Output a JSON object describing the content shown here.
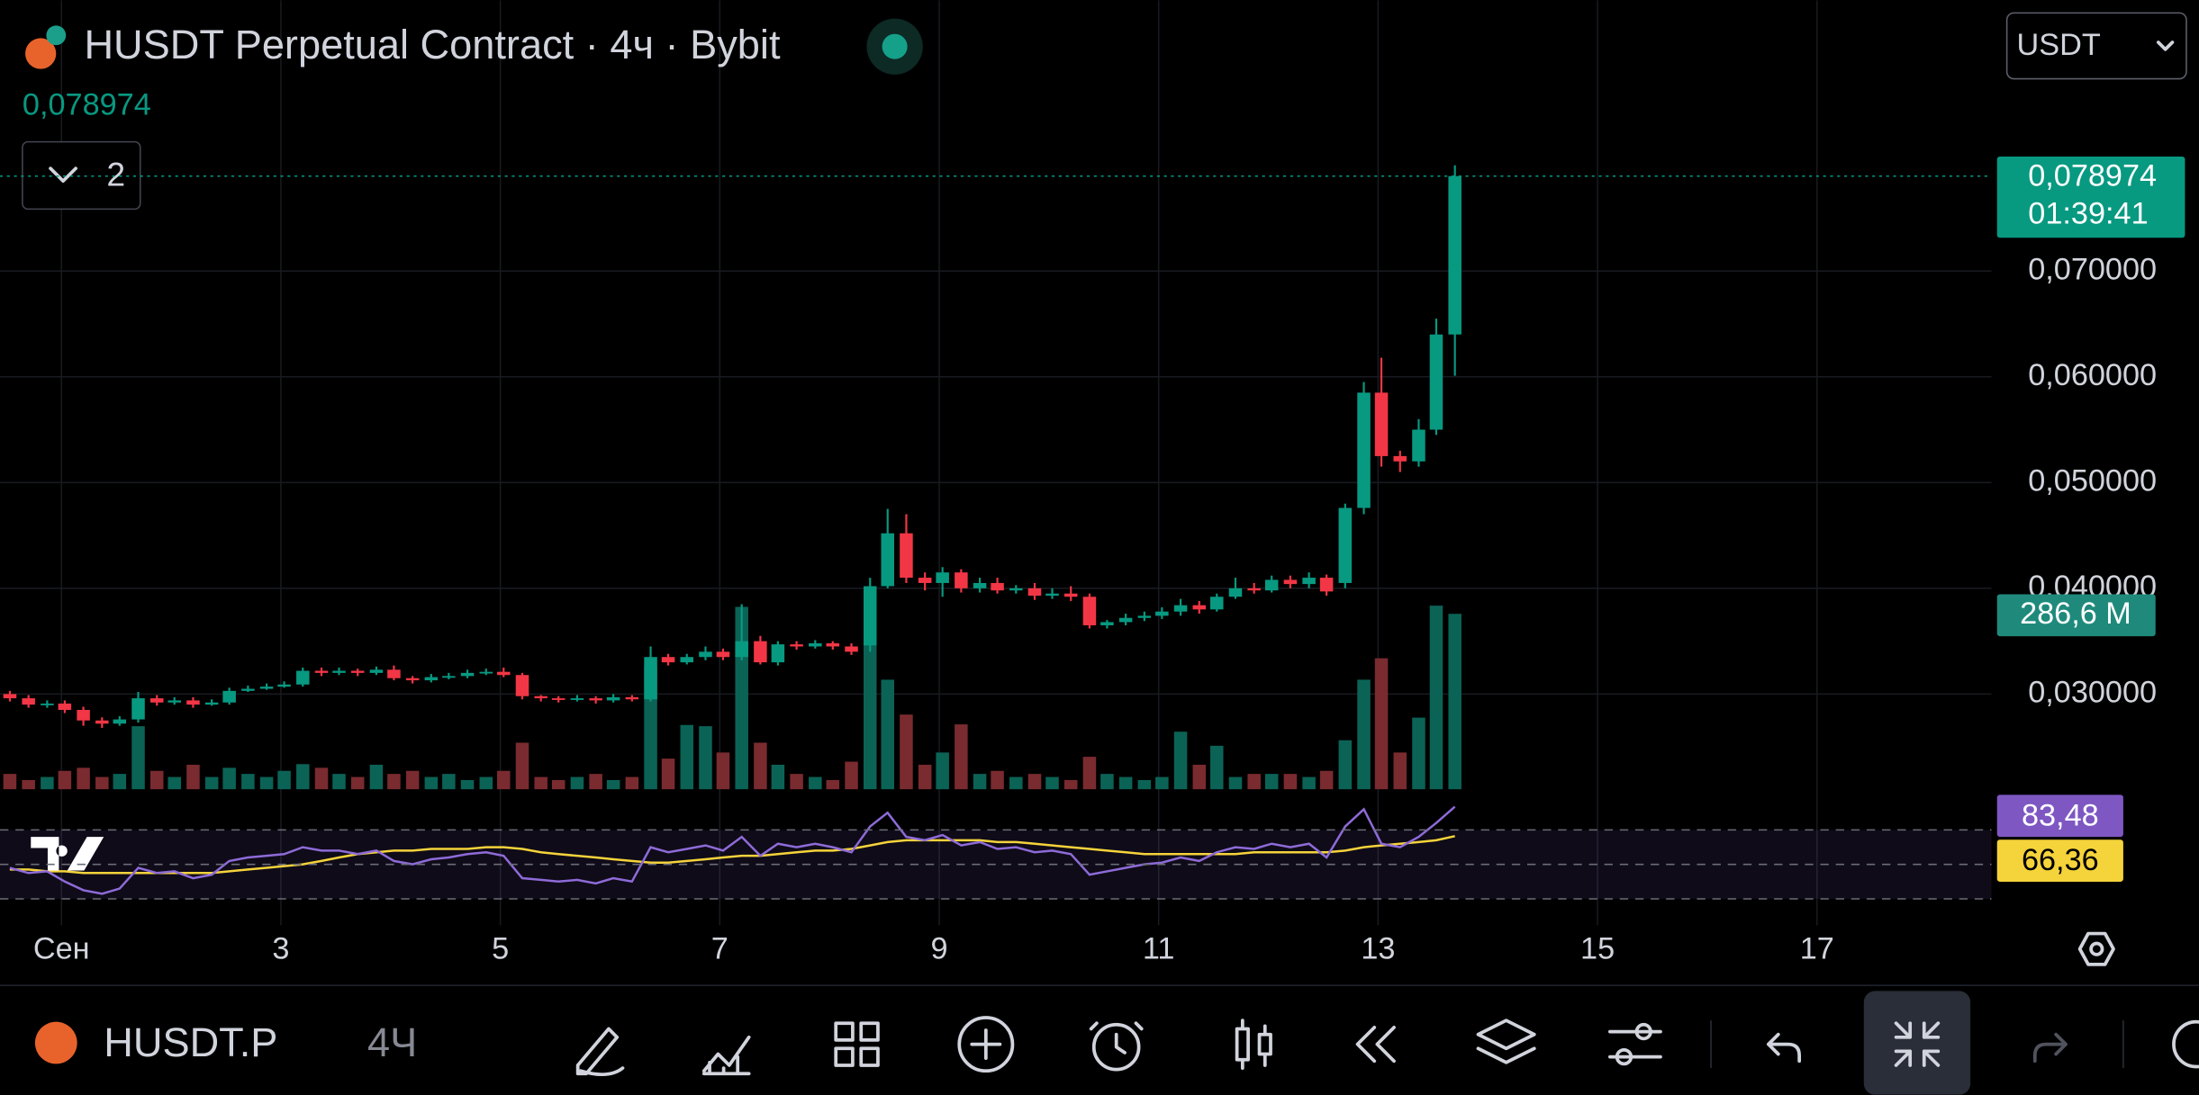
{
  "header": {
    "title": "HUSDT Perpetual Contract · 4ч · Bybit",
    "price": "0,078974",
    "indicator_count": "2",
    "currency": "USDT"
  },
  "chart_data": {
    "type": "candlestick",
    "x": [
      0.53,
      0.7,
      0.87,
      1.03,
      1.2,
      1.37,
      1.53,
      1.7,
      1.87,
      2.03,
      2.2,
      2.37,
      2.53,
      2.7,
      2.87,
      3.03,
      3.2,
      3.37,
      3.53,
      3.7,
      3.87,
      4.03,
      4.2,
      4.37,
      4.53,
      4.7,
      4.87,
      5.03,
      5.2,
      5.37,
      5.53,
      5.7,
      5.87,
      6.03,
      6.2,
      6.37,
      6.53,
      6.7,
      6.87,
      7.03,
      7.2,
      7.37,
      7.53,
      7.7,
      7.87,
      8.03,
      8.2,
      8.37,
      8.53,
      8.7,
      8.87,
      9.03,
      9.2,
      9.37,
      9.53,
      9.7,
      9.87,
      10.03,
      10.2,
      10.37,
      10.53,
      10.7,
      10.87,
      11.03,
      11.2,
      11.37,
      11.53,
      11.7,
      11.87,
      12.03,
      12.2,
      12.37,
      12.53,
      12.7,
      12.87,
      13.03,
      13.2,
      13.37,
      13.53,
      13.7
    ],
    "open": [
      0.03,
      0.0296,
      0.029,
      0.0291,
      0.0285,
      0.0275,
      0.0272,
      0.0276,
      0.0296,
      0.0292,
      0.0294,
      0.029,
      0.0292,
      0.0303,
      0.0305,
      0.0307,
      0.0309,
      0.0322,
      0.032,
      0.0322,
      0.032,
      0.0323,
      0.0315,
      0.0313,
      0.0316,
      0.0317,
      0.032,
      0.0321,
      0.0318,
      0.0298,
      0.0296,
      0.0295,
      0.0296,
      0.0294,
      0.0297,
      0.0295,
      0.0335,
      0.033,
      0.0335,
      0.034,
      0.0335,
      0.035,
      0.033,
      0.0347,
      0.0345,
      0.0348,
      0.0345,
      0.0346,
      0.0402,
      0.0452,
      0.041,
      0.0405,
      0.0415,
      0.04,
      0.0405,
      0.0398,
      0.04,
      0.0393,
      0.0395,
      0.0392,
      0.0365,
      0.0368,
      0.0372,
      0.0374,
      0.0378,
      0.0384,
      0.038,
      0.0392,
      0.04,
      0.0398,
      0.0408,
      0.0404,
      0.041,
      0.0405,
      0.0476,
      0.0585,
      0.0525,
      0.052,
      0.055,
      0.064
    ],
    "high": [
      0.0303,
      0.0299,
      0.0294,
      0.0294,
      0.0288,
      0.0278,
      0.0279,
      0.0302,
      0.0299,
      0.0297,
      0.0297,
      0.0295,
      0.0306,
      0.0308,
      0.031,
      0.0312,
      0.0325,
      0.0325,
      0.0325,
      0.0324,
      0.0326,
      0.0327,
      0.0317,
      0.0319,
      0.032,
      0.0323,
      0.0324,
      0.0325,
      0.032,
      0.0299,
      0.0298,
      0.0299,
      0.0298,
      0.03,
      0.0299,
      0.0345,
      0.0338,
      0.0338,
      0.0345,
      0.0343,
      0.0385,
      0.0355,
      0.035,
      0.035,
      0.0351,
      0.035,
      0.0348,
      0.041,
      0.0475,
      0.047,
      0.0415,
      0.042,
      0.0418,
      0.041,
      0.041,
      0.0403,
      0.0405,
      0.04,
      0.0402,
      0.0395,
      0.037,
      0.0376,
      0.0378,
      0.0382,
      0.039,
      0.0388,
      0.0395,
      0.041,
      0.0405,
      0.0412,
      0.0412,
      0.0415,
      0.0413,
      0.048,
      0.0595,
      0.0618,
      0.053,
      0.056,
      0.0655,
      0.08
    ],
    "low": [
      0.0293,
      0.0287,
      0.0287,
      0.0282,
      0.027,
      0.0268,
      0.027,
      0.0273,
      0.0289,
      0.029,
      0.0287,
      0.0289,
      0.029,
      0.0302,
      0.0304,
      0.0306,
      0.0307,
      0.0317,
      0.0318,
      0.0317,
      0.0318,
      0.0313,
      0.031,
      0.0311,
      0.0314,
      0.0315,
      0.0318,
      0.0316,
      0.0295,
      0.0293,
      0.0292,
      0.0293,
      0.0291,
      0.0292,
      0.0293,
      0.0293,
      0.0327,
      0.0328,
      0.0332,
      0.0332,
      0.0332,
      0.0328,
      0.0327,
      0.0342,
      0.0343,
      0.0342,
      0.0337,
      0.034,
      0.04,
      0.0405,
      0.0398,
      0.0392,
      0.0396,
      0.0396,
      0.0395,
      0.0395,
      0.0389,
      0.039,
      0.0388,
      0.0362,
      0.0362,
      0.0365,
      0.0369,
      0.0371,
      0.0374,
      0.0376,
      0.0378,
      0.039,
      0.0395,
      0.0396,
      0.04,
      0.04,
      0.0393,
      0.04,
      0.047,
      0.0515,
      0.051,
      0.0515,
      0.0545,
      0.0601
    ],
    "close": [
      0.0296,
      0.029,
      0.0291,
      0.0285,
      0.0275,
      0.0272,
      0.0276,
      0.0296,
      0.0292,
      0.0294,
      0.029,
      0.0292,
      0.0303,
      0.0305,
      0.0307,
      0.0309,
      0.0322,
      0.032,
      0.0322,
      0.032,
      0.0323,
      0.0315,
      0.0313,
      0.0316,
      0.0317,
      0.032,
      0.0321,
      0.0318,
      0.0298,
      0.0296,
      0.0295,
      0.0296,
      0.0294,
      0.0297,
      0.0295,
      0.0335,
      0.033,
      0.0335,
      0.034,
      0.0335,
      0.035,
      0.033,
      0.0347,
      0.0345,
      0.0348,
      0.0345,
      0.034,
      0.0402,
      0.0452,
      0.041,
      0.0405,
      0.0415,
      0.04,
      0.0405,
      0.0398,
      0.04,
      0.0393,
      0.0395,
      0.0392,
      0.0365,
      0.0368,
      0.0372,
      0.0374,
      0.0378,
      0.0384,
      0.038,
      0.0392,
      0.04,
      0.0398,
      0.0408,
      0.0404,
      0.041,
      0.0397,
      0.0476,
      0.0585,
      0.0525,
      0.052,
      0.055,
      0.064,
      0.078974
    ],
    "color_up": "#089981",
    "color_down": "#f23645",
    "xlim": [
      0.44,
      18.59
    ],
    "xticks": [
      {
        "value": 1,
        "label": "Сен"
      },
      3,
      5,
      7,
      9,
      11,
      13,
      15,
      17
    ],
    "ylim": [
      0.021,
      0.0956
    ],
    "yticks": [
      {
        "value": 0.03,
        "label": "0,030000"
      },
      {
        "value": 0.04,
        "label": "0,040000"
      },
      {
        "value": 0.05,
        "label": "0,050000"
      },
      {
        "value": 0.06,
        "label": "0,060000"
      },
      {
        "value": 0.07,
        "label": "0,070000"
      }
    ],
    "grid": true,
    "last_price": {
      "value": 0.078974,
      "label": "0,078974"
    },
    "countdown": "01:39:41",
    "volume": {
      "values": [
        25,
        15,
        20,
        30,
        35,
        20,
        25,
        103,
        30,
        20,
        40,
        20,
        35,
        25,
        20,
        30,
        41,
        35,
        25,
        20,
        40,
        25,
        30,
        20,
        25,
        15,
        20,
        30,
        76,
        20,
        15,
        20,
        25,
        15,
        20,
        202,
        50,
        105,
        103,
        60,
        298,
        76,
        40,
        25,
        20,
        15,
        45,
        282,
        179,
        122,
        40,
        60,
        106,
        25,
        30,
        20,
        25,
        20,
        15,
        53,
        25,
        20,
        15,
        20,
        94,
        40,
        71,
        20,
        25,
        25,
        25,
        20,
        30,
        80,
        179,
        214,
        60,
        117,
        300,
        286.6
      ],
      "ylim": [
        0,
        300
      ],
      "last_label": "286,6 M",
      "color_up": "#0b6356",
      "color_down": "#7a2b2f"
    },
    "rsi": {
      "values": [
        48,
        45,
        46,
        40,
        35,
        33,
        36,
        48,
        45,
        46,
        42,
        44,
        52,
        54,
        55,
        56,
        60,
        58,
        58,
        56,
        58,
        52,
        50,
        53,
        54,
        56,
        57,
        55,
        42,
        41,
        40,
        41,
        39,
        42,
        40,
        60,
        57,
        59,
        61,
        58,
        66,
        55,
        62,
        60,
        62,
        60,
        57,
        72,
        80,
        66,
        64,
        67,
        61,
        63,
        59,
        60,
        57,
        58,
        56,
        44,
        46,
        48,
        50,
        51,
        54,
        52,
        57,
        60,
        59,
        62,
        60,
        62,
        54,
        72,
        82,
        62,
        60,
        66,
        74,
        83.48
      ],
      "ma": [
        47,
        47,
        46,
        46,
        45,
        45,
        45,
        45,
        45,
        45,
        45,
        45,
        46,
        47,
        48,
        49,
        50,
        52,
        54,
        56,
        57,
        58,
        58,
        59,
        59,
        59,
        60,
        60,
        59,
        57,
        56,
        55,
        54,
        53,
        52,
        51,
        51,
        52,
        53,
        54,
        55,
        55,
        56,
        57,
        58,
        58,
        59,
        61,
        63,
        64,
        64,
        64,
        64,
        64,
        63,
        63,
        62,
        61,
        60,
        59,
        58,
        57,
        56,
        56,
        56,
        56,
        56,
        56,
        57,
        57,
        57,
        57,
        57,
        58,
        60,
        61,
        62,
        63,
        64,
        66.36
      ],
      "ylim": [
        18,
        92
      ],
      "levels": [
        30,
        50,
        70
      ],
      "value_label": "83,48",
      "ma_label": "66,36",
      "color": "#8e6bd8",
      "ma_color": "#f5d33b"
    }
  },
  "toolbar": {
    "symbol": "HUSDT.P",
    "interval": "4Ч"
  }
}
